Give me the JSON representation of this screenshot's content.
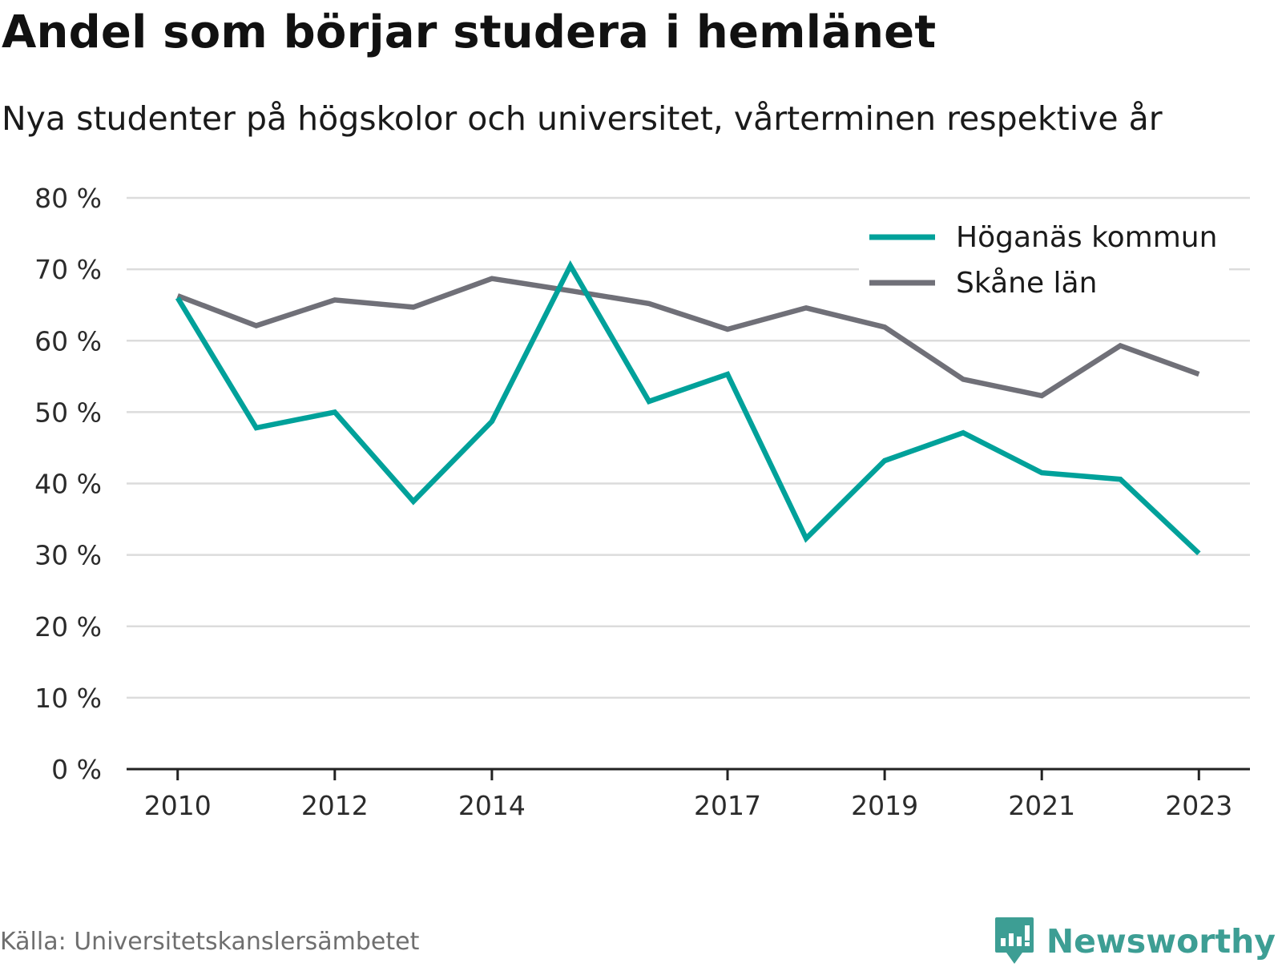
{
  "title": "Andel som börjar studera i hemlänet",
  "subtitle": "Nya studenter på högskolor och universitet, vårterminen respektive år",
  "source": "Källa: Universitetskanslersämbetet",
  "brand": "Newsworthy",
  "colors": {
    "series1": "#00a19a",
    "series2": "#707078",
    "grid": "#dcdcdc",
    "axis": "#222222",
    "brand": "#3d9e94"
  },
  "chart_data": {
    "type": "line",
    "x": [
      2010,
      2011,
      2012,
      2013,
      2014,
      2015,
      2016,
      2017,
      2018,
      2019,
      2020,
      2021,
      2022,
      2023
    ],
    "x_tick_labels": [
      "2010",
      "2012",
      "2014",
      "2017",
      "2019",
      "2021",
      "2023"
    ],
    "x_tick_values": [
      2010,
      2012,
      2014,
      2017,
      2019,
      2021,
      2023
    ],
    "y_ticks": [
      0,
      10,
      20,
      30,
      40,
      50,
      60,
      70,
      80
    ],
    "y_tick_labels": [
      "0 %",
      "10 %",
      "20 %",
      "30 %",
      "40 %",
      "50 %",
      "60 %",
      "70 %",
      "80 %"
    ],
    "ylim": [
      0,
      80
    ],
    "xlim": [
      2009.35,
      2023.65
    ],
    "grid": true,
    "legend_position": "top-right",
    "series": [
      {
        "name": "Höganäs kommun",
        "color": "#00a19a",
        "values": [
          66,
          47.8,
          50,
          37.5,
          48.7,
          70.5,
          51.5,
          55.3,
          32.3,
          43.2,
          47.1,
          41.5,
          40.6,
          30.2
        ]
      },
      {
        "name": "Skåne län",
        "color": "#707078",
        "values": [
          66.3,
          62.1,
          65.7,
          64.7,
          68.7,
          67,
          65.2,
          61.6,
          64.6,
          61.9,
          54.6,
          52.3,
          59.3,
          55.3
        ]
      }
    ]
  }
}
